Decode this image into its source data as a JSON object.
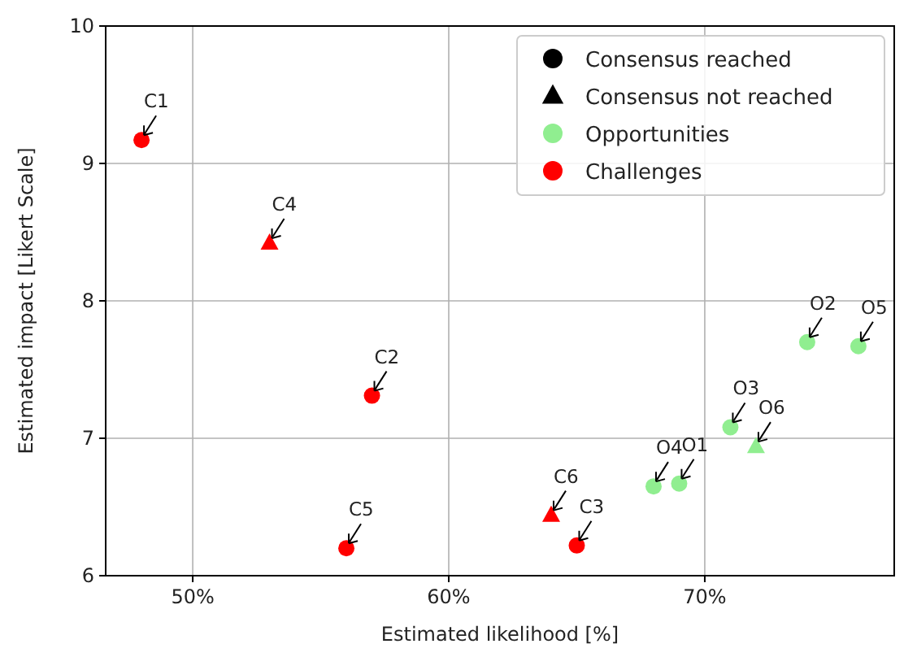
{
  "chart_data": {
    "type": "scatter",
    "xlabel": "Estimated likelihood [%]",
    "ylabel": "Estimated impact [Likert Scale]",
    "xlim": [
      46.6,
      77.4
    ],
    "ylim": [
      6,
      10
    ],
    "xticks": [
      {
        "value": 50,
        "label": "50%"
      },
      {
        "value": 60,
        "label": "60%"
      },
      {
        "value": 70,
        "label": "70%"
      }
    ],
    "yticks": [
      6,
      7,
      8,
      9,
      10
    ],
    "grid": true,
    "legend": "top right",
    "series": [
      {
        "name": "Consensus reached",
        "color": "#000000",
        "marker": "circle"
      },
      {
        "name": "Consensus not reached",
        "color": "#000000",
        "marker": "triangle"
      },
      {
        "name": "Opportunities",
        "color": "#90ee90",
        "marker": "circle",
        "x": [
          69,
          74,
          71,
          68,
          76
        ],
        "values": [
          6.67,
          7.7,
          7.08,
          6.65,
          7.67
        ]
      },
      {
        "name": "Challenges",
        "color": "#ff0000",
        "marker": "circle",
        "x": [
          48,
          57,
          65,
          56
        ],
        "values": [
          9.17,
          7.31,
          6.22,
          6.2
        ]
      },
      {
        "color": "#90ee90",
        "marker": "triangle",
        "x": [
          72
        ],
        "values": [
          6.94
        ]
      },
      {
        "color": "#ff0000",
        "marker": "triangle",
        "x": [
          53,
          64
        ],
        "values": [
          8.42,
          6.44
        ]
      }
    ],
    "annotations": [
      {
        "text": "O1",
        "x": 69,
        "y": 6.67
      },
      {
        "text": "O2",
        "x": 74,
        "y": 7.7
      },
      {
        "text": "O3",
        "x": 71,
        "y": 7.08
      },
      {
        "text": "O4",
        "x": 68,
        "y": 6.65
      },
      {
        "text": "O5",
        "x": 76,
        "y": 7.67
      },
      {
        "text": "O6",
        "x": 72,
        "y": 6.94
      },
      {
        "text": "C1",
        "x": 48,
        "y": 9.17
      },
      {
        "text": "C2",
        "x": 57,
        "y": 7.31
      },
      {
        "text": "C3",
        "x": 65,
        "y": 6.22
      },
      {
        "text": "C4",
        "x": 53,
        "y": 8.42
      },
      {
        "text": "C5",
        "x": 56,
        "y": 6.2
      },
      {
        "text": "C6",
        "x": 64,
        "y": 6.44
      }
    ]
  }
}
